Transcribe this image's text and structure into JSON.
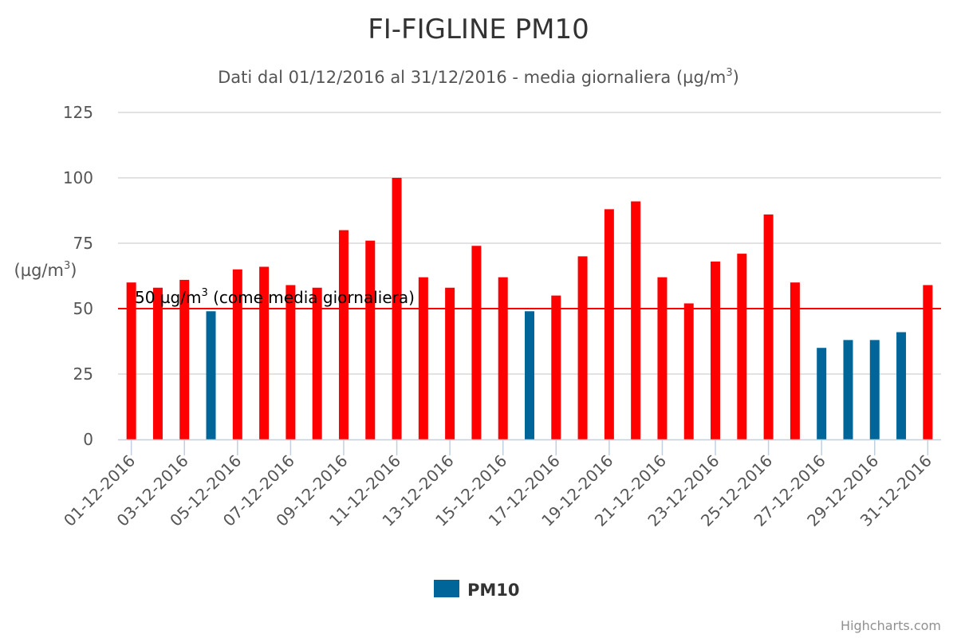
{
  "chart_data": {
    "type": "bar",
    "title": "FI-FIGLINE PM10",
    "subtitle": {
      "text": "Dati dal 01/12/2016 al 31/12/2016 - media giornaliera (µg/m",
      "sup": "3",
      "tail": ")"
    },
    "ylabel": {
      "text": "(µg/m",
      "sup": "3",
      "tail": ")"
    },
    "ylim": [
      0,
      125
    ],
    "yticks": [
      "0",
      "25",
      "50",
      "75",
      "100",
      "125"
    ],
    "grid": true,
    "categories": [
      "01-12-2016",
      "02-12-2016",
      "03-12-2016",
      "04-12-2016",
      "05-12-2016",
      "06-12-2016",
      "07-12-2016",
      "08-12-2016",
      "09-12-2016",
      "10-12-2016",
      "11-12-2016",
      "12-12-2016",
      "13-12-2016",
      "14-12-2016",
      "15-12-2016",
      "16-12-2016",
      "17-12-2016",
      "18-12-2016",
      "19-12-2016",
      "20-12-2016",
      "21-12-2016",
      "22-12-2016",
      "23-12-2016",
      "24-12-2016",
      "25-12-2016",
      "26-12-2016",
      "27-12-2016",
      "28-12-2016",
      "29-12-2016",
      "30-12-2016",
      "31-12-2016"
    ],
    "shown_tick_labels": [
      "01-12-2016",
      "03-12-2016",
      "05-12-2016",
      "07-12-2016",
      "09-12-2016",
      "11-12-2016",
      "13-12-2016",
      "15-12-2016",
      "17-12-2016",
      "19-12-2016",
      "21-12-2016",
      "23-12-2016",
      "25-12-2016",
      "27-12-2016",
      "29-12-2016",
      "31-12-2016"
    ],
    "series": [
      {
        "name": "PM10",
        "values": [
          60,
          58,
          61,
          49,
          65,
          66,
          59,
          58,
          80,
          76,
          100,
          62,
          58,
          74,
          62,
          49,
          55,
          70,
          88,
          91,
          62,
          52,
          68,
          71,
          86,
          60,
          35,
          38,
          38,
          41,
          59
        ]
      }
    ],
    "threshold": {
      "value": 50,
      "label": "50 µg/m",
      "label_sup": "3",
      "label_tail": " (come media giornaliera)",
      "color": "#ff0000"
    },
    "colors": {
      "below_threshold": "#006699",
      "above_threshold": "#ff0000",
      "grid": "#d8d8d8",
      "axis": "#c0d0e0"
    },
    "legend": {
      "position": "bottom-center",
      "label": "PM10"
    },
    "credits": "Highcharts.com"
  }
}
